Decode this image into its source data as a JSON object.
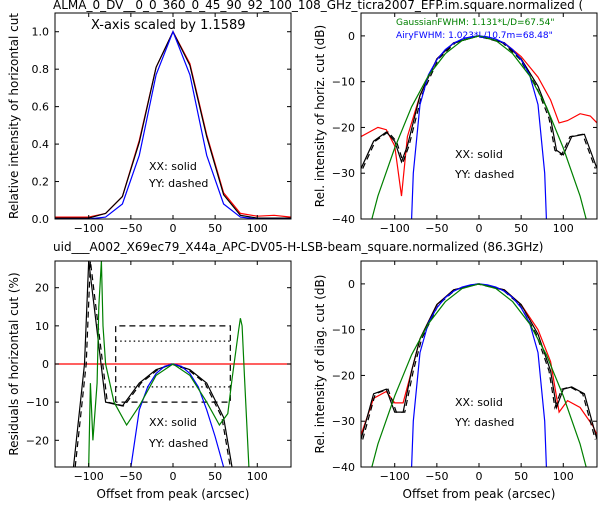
{
  "top_title": "ALMA_0_DV__0_0_360_0_45_90_92_100_108_GHz_ticra2007_EFP.im.square.normalized (",
  "mid_title": "uid___A002_X69ec79_X44a_APC-DV05-H-LSB-beam_square.normalized (86.3GHz)",
  "colors": {
    "red": "#ff0000",
    "black": "#000000",
    "blue": "#0000ff",
    "green": "#008000",
    "title_red": "#ff0000"
  },
  "chart_data": [
    {
      "type": "line",
      "ylabel": "Relative intensity of horizontal cut",
      "xlabel": "",
      "xlim": [
        -140,
        140
      ],
      "ylim": [
        0,
        1.1
      ],
      "xticks": [
        "−100",
        "−50",
        "0",
        "50",
        "100"
      ],
      "xtick_values": [
        -100,
        -50,
        0,
        50,
        100
      ],
      "yticks": [
        "0.0",
        "0.2",
        "0.4",
        "0.6",
        "0.8",
        "1.0"
      ],
      "ytick_values": [
        0,
        0.2,
        0.4,
        0.6,
        0.8,
        1.0
      ],
      "annotations": [
        "X-axis scaled by 1.1589",
        "XX: solid",
        "YY: dashed"
      ],
      "series": [
        {
          "color": "red",
          "x": [
            -140,
            -100,
            -80,
            -60,
            -40,
            -20,
            0,
            20,
            40,
            60,
            80,
            100,
            120,
            140
          ],
          "y": [
            0.01,
            0.01,
            0.03,
            0.12,
            0.42,
            0.81,
            1.0,
            0.83,
            0.45,
            0.14,
            0.03,
            0.015,
            0.02,
            0.01
          ]
        },
        {
          "color": "black",
          "x": [
            -140,
            -100,
            -80,
            -60,
            -40,
            -20,
            0,
            20,
            40,
            60,
            80,
            100,
            120,
            140
          ],
          "y": [
            0.005,
            0.005,
            0.03,
            0.12,
            0.41,
            0.81,
            1.0,
            0.82,
            0.44,
            0.13,
            0.02,
            0.005,
            0.005,
            0.005
          ]
        },
        {
          "color": "blue",
          "x": [
            -140,
            -100,
            -80,
            -60,
            -40,
            -20,
            0,
            20,
            40,
            60,
            80,
            100,
            120,
            140
          ],
          "y": [
            0,
            0,
            0.01,
            0.08,
            0.34,
            0.77,
            1.0,
            0.77,
            0.34,
            0.08,
            0.01,
            0,
            0,
            0
          ]
        }
      ]
    },
    {
      "type": "line",
      "ylabel": "Rel. intensity of horiz. cut (dB)",
      "xlabel": "",
      "xlim": [
        -140,
        140
      ],
      "ylim": [
        -40,
        5
      ],
      "xticks": [
        "−100",
        "−50",
        "0",
        "50",
        "100"
      ],
      "xtick_values": [
        -100,
        -50,
        0,
        50,
        100
      ],
      "yticks": [
        "−40",
        "−30",
        "−20",
        "−10",
        "0"
      ],
      "ytick_values": [
        -40,
        -30,
        -20,
        -10,
        0
      ],
      "annotations": [
        "GaussianFWHM: 1.131*L/D=67.54\"",
        "AiryFWHM: 1.023*L/10.7m=68.48\"",
        "XX: solid",
        "YY: dashed"
      ],
      "series": [
        {
          "color": "red",
          "x": [
            -140,
            -120,
            -110,
            -100,
            -92,
            -85,
            -70,
            -50,
            -30,
            0,
            30,
            50,
            70,
            85,
            95,
            105,
            120,
            132,
            140
          ],
          "y": [
            -22,
            -20,
            -20.5,
            -24,
            -35,
            -22,
            -13,
            -5,
            -1.5,
            0,
            -1.5,
            -4.5,
            -9,
            -14,
            -19,
            -18.5,
            -17,
            -17.5,
            -19
          ]
        },
        {
          "color": "black",
          "x": [
            -140,
            -125,
            -110,
            -100,
            -92,
            -85,
            -70,
            -50,
            -30,
            0,
            30,
            50,
            70,
            85,
            92,
            100,
            110,
            125,
            140
          ],
          "y": [
            -29,
            -23,
            -21,
            -23,
            -27.5,
            -24,
            -13,
            -5,
            -1.5,
            0,
            -1.5,
            -5,
            -11,
            -18,
            -25,
            -26,
            -22,
            -21.5,
            -29
          ]
        },
        {
          "color": "blue",
          "x": [
            -80,
            -78,
            -70,
            -60,
            -50,
            -40,
            -30,
            -20,
            -10,
            0,
            10,
            20,
            30,
            40,
            50,
            60,
            70,
            78,
            80
          ],
          "y": [
            -40,
            -30,
            -15,
            -8.5,
            -5.2,
            -3,
            -1.6,
            -0.7,
            -0.2,
            0,
            -0.2,
            -0.7,
            -1.6,
            -3,
            -5.2,
            -8.5,
            -15,
            -30,
            -40
          ]
        },
        {
          "color": "green",
          "x": [
            -140,
            -120,
            -100,
            -80,
            -60,
            -40,
            -20,
            0,
            20,
            40,
            60,
            80,
            100,
            120,
            140
          ],
          "y": [
            -49,
            -35,
            -24.5,
            -15.5,
            -8.7,
            -3.9,
            -1,
            0,
            -1,
            -3.9,
            -8.7,
            -15.5,
            -24.5,
            -35,
            -49
          ]
        }
      ]
    },
    {
      "type": "line",
      "ylabel": "Residuals of horizontal cut (%)",
      "xlabel": "Offset from peak (arcsec)",
      "xlim": [
        -140,
        140
      ],
      "ylim": [
        -27,
        27
      ],
      "xticks": [
        "−100",
        "−50",
        "0",
        "50",
        "100"
      ],
      "xtick_values": [
        -100,
        -50,
        0,
        50,
        100
      ],
      "yticks": [
        "−20",
        "−10",
        "0",
        "10",
        "20"
      ],
      "ytick_values": [
        -20,
        -10,
        0,
        10,
        20
      ],
      "annotations": [
        "XX: solid",
        "YY: dashed"
      ],
      "series": [
        {
          "color": "red",
          "x": [
            -140,
            140
          ],
          "y": [
            0,
            0
          ]
        },
        {
          "color": "black",
          "x": [
            -118,
            -105,
            -100,
            -80,
            -60,
            -40,
            -20,
            0,
            20,
            40,
            60,
            70
          ],
          "y": [
            -27,
            0,
            27,
            -10,
            -11,
            -5,
            -1.5,
            0,
            -1.5,
            -5,
            -14,
            -27
          ]
        },
        {
          "color": "blue",
          "x": [
            -50,
            -40,
            -30,
            -20,
            -10,
            0,
            10,
            20,
            30,
            40,
            50,
            60
          ],
          "y": [
            -27,
            -12,
            -6,
            -2.5,
            -0.6,
            0,
            -0.6,
            -2.5,
            -6,
            -12,
            -19,
            -27
          ]
        },
        {
          "color": "green",
          "x": [
            -100,
            -98,
            -95,
            -90,
            -88,
            -85,
            -83,
            -80,
            -70,
            -55,
            -40,
            -20,
            0,
            20,
            40,
            55,
            65,
            70,
            78,
            80,
            82,
            85,
            90
          ],
          "y": [
            -27,
            -5,
            -20,
            -5,
            15,
            27,
            10,
            0,
            -10,
            -16,
            -11,
            -3,
            0,
            -3,
            -10,
            -16,
            -13,
            -4,
            9,
            12,
            10,
            -4,
            -27
          ]
        }
      ]
    },
    {
      "type": "line",
      "ylabel": "Rel. intensity of diag. cut (dB)",
      "xlabel": "Offset from peak (arcsec)",
      "xlim": [
        -140,
        140
      ],
      "ylim": [
        -40,
        5
      ],
      "xticks": [
        "−100",
        "−50",
        "0",
        "50",
        "100"
      ],
      "xtick_values": [
        -100,
        -50,
        0,
        50,
        100
      ],
      "yticks": [
        "−40",
        "−30",
        "−20",
        "−10",
        "0"
      ],
      "ytick_values": [
        -40,
        -30,
        -20,
        -10,
        0
      ],
      "annotations": [
        "XX: solid",
        "YY: dashed"
      ],
      "series": [
        {
          "color": "red",
          "x": [
            -140,
            -125,
            -110,
            -100,
            -90,
            -80,
            -70,
            -50,
            -30,
            0,
            30,
            50,
            70,
            85,
            95,
            105,
            120,
            135,
            140
          ],
          "y": [
            -33,
            -25,
            -23.5,
            -26,
            -26,
            -19,
            -12,
            -4.5,
            -1.3,
            0,
            -1.3,
            -4.5,
            -10,
            -17,
            -28,
            -25.5,
            -27,
            -31,
            -33
          ]
        },
        {
          "color": "black",
          "x": [
            -140,
            -125,
            -110,
            -100,
            -90,
            -80,
            -70,
            -50,
            -30,
            0,
            30,
            50,
            70,
            85,
            92,
            100,
            110,
            125,
            140
          ],
          "y": [
            -34,
            -24,
            -23,
            -28,
            -28,
            -19,
            -12,
            -4.5,
            -1.3,
            0,
            -1.3,
            -4.5,
            -11,
            -19,
            -27,
            -23,
            -22.5,
            -24,
            -34
          ]
        },
        {
          "color": "blue",
          "x": [
            -80,
            -78,
            -70,
            -60,
            -50,
            -40,
            -30,
            -20,
            -10,
            0,
            10,
            20,
            30,
            40,
            50,
            60,
            70,
            78,
            80
          ],
          "y": [
            -40,
            -30,
            -15,
            -8.5,
            -5.2,
            -3,
            -1.6,
            -0.7,
            -0.2,
            0,
            -0.2,
            -0.7,
            -1.6,
            -3,
            -5.2,
            -8.5,
            -15,
            -30,
            -40
          ]
        },
        {
          "color": "green",
          "x": [
            -140,
            -120,
            -100,
            -80,
            -60,
            -40,
            -20,
            0,
            20,
            40,
            60,
            80,
            100,
            120,
            140
          ],
          "y": [
            -49,
            -35,
            -24.5,
            -15.5,
            -8.7,
            -3.9,
            -1,
            0,
            -1,
            -3.9,
            -8.7,
            -15.5,
            -24.5,
            -35,
            -49
          ]
        }
      ]
    }
  ]
}
